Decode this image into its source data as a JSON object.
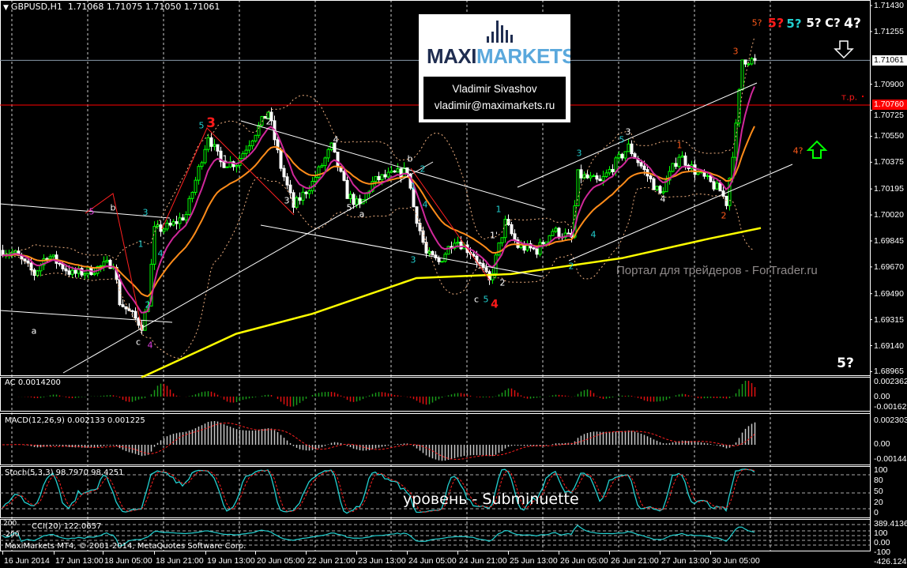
{
  "header": {
    "symbol": "GBPUSD,H1",
    "open": "1.71068",
    "high": "1.71075",
    "low": "1.71050",
    "close": "1.71061"
  },
  "logo": {
    "brand_part1": "MAXI",
    "brand_part2": "MARKETS",
    "author": "Vladimir Sivashov",
    "email": "vladimir@maximarkets.ru"
  },
  "watermark": "Портал для трейдеров - ForTrader.ru",
  "level_label": "уровень - Subminuette",
  "footer": "MaxiMarkets MT4, © 2001-2014, MetaQuotes Software Corp.",
  "colors": {
    "bull": "#00ff00",
    "bear": "#ffffff",
    "ma_fast": "#d0289a",
    "ma_mid": "#ff8c1a",
    "ma_slow": "#ffff00",
    "bands": "#f0b080",
    "bid_line": "#8899aa",
    "target_line": "#ff0000",
    "cyan": "#22d0d0",
    "orange": "#ff5a1a",
    "red": "#ff1a1a",
    "magenta": "#e040e0"
  },
  "chart_data": {
    "type": "candlestick",
    "symbol": "GBPUSD",
    "timeframe": "H1",
    "ylim": [
      1.689,
      1.7148
    ],
    "price_ticks": [
      "1.71430",
      "1.71255",
      "1.70900",
      "1.70725",
      "1.70550",
      "1.70375",
      "1.70195",
      "1.70020",
      "1.69845",
      "1.69670",
      "1.69490",
      "1.69315",
      "1.69140",
      "1.68965"
    ],
    "time_ticks": [
      "16 Jun 2014",
      "17 Jun 13:00",
      "18 Jun 05:00",
      "18 Jun 21:00",
      "19 Jun 13:00",
      "20 Jun 05:00",
      "22 Jun 21:00",
      "23 Jun 13:00",
      "24 Jun 05:00",
      "24 Jun 21:00",
      "25 Jun 13:00",
      "26 Jun 05:00",
      "26 Jun 21:00",
      "27 Jun 13:00",
      "30 Jun 05:00"
    ],
    "current_price": "1.71061",
    "target_price": "1.70760",
    "price_path": [
      [
        "2014-06-16 21:00",
        1.69782
      ],
      [
        "2014-06-17 01:00",
        1.69755
      ],
      [
        "2014-06-17 07:00",
        1.69622
      ],
      [
        "2014-06-17 11:00",
        1.69755
      ],
      [
        "2014-06-17 19:00",
        1.69622
      ],
      [
        "2014-06-18 00:00",
        1.6964
      ],
      [
        "2014-06-18 08:00",
        1.69702
      ],
      [
        "2014-06-18 10:00",
        1.69434
      ],
      [
        "2014-06-18 17:00",
        1.69274
      ],
      [
        "2014-06-18 19:00",
        1.69434
      ],
      [
        "2014-06-18 21:00",
        1.69916
      ],
      [
        "2014-06-19 02:00",
        1.69943
      ],
      [
        "2014-06-19 07:00",
        1.70023
      ],
      [
        "2014-06-19 14:00",
        1.70558
      ],
      [
        "2014-06-19 18:00",
        1.70371
      ],
      [
        "2014-06-19 23:00",
        1.70371
      ],
      [
        "2014-06-20 09:00",
        1.70718
      ],
      [
        "2014-06-20 13:00",
        1.70344
      ],
      [
        "2014-06-20 17:00",
        1.70076
      ],
      [
        "2014-06-22 23:00",
        1.70237
      ],
      [
        "2014-06-23 05:00",
        1.70478
      ],
      [
        "2014-06-23 10:00",
        1.70157
      ],
      [
        "2014-06-23 14:00",
        1.70076
      ],
      [
        "2014-06-23 18:00",
        1.70237
      ],
      [
        "2014-06-23 20:00",
        1.70264
      ],
      [
        "2014-06-24 05:00",
        1.70317
      ],
      [
        "2014-06-24 07:00",
        1.70076
      ],
      [
        "2014-06-24 11:00",
        1.69755
      ],
      [
        "2014-06-24 15:00",
        1.69702
      ],
      [
        "2014-06-24 20:00",
        1.69862
      ],
      [
        "2014-06-25 02:00",
        1.69755
      ],
      [
        "2014-06-25 07:00",
        1.69568
      ],
      [
        "2014-06-25 12:00",
        1.69969
      ],
      [
        "2014-06-25 16:00",
        1.69809
      ],
      [
        "2014-06-25 22:00",
        1.69782
      ],
      [
        "2014-06-26 03:00",
        1.69916
      ],
      [
        "2014-06-26 09:00",
        1.69862
      ],
      [
        "2014-06-26 11:00",
        1.7029
      ],
      [
        "2014-06-26 18:00",
        1.70237
      ],
      [
        "2014-06-27 03:00",
        1.70478
      ],
      [
        "2014-06-27 08:00",
        1.70317
      ],
      [
        "2014-06-27 13:00",
        1.70157
      ],
      [
        "2014-06-27 19:00",
        1.70424
      ],
      [
        "2014-06-30 00:00",
        1.70317
      ],
      [
        "2014-06-30 08:00",
        1.70183
      ],
      [
        "2014-06-30 10:00",
        1.70103
      ],
      [
        "2014-06-30 13:00",
        1.70611
      ],
      [
        "2014-06-30 15:00",
        1.71066
      ],
      [
        "2014-06-30 19:00",
        1.71061
      ]
    ],
    "ma_slow_path": [
      [
        "2014-06-18 17:00",
        1.68926
      ],
      [
        "2014-06-19 23:00",
        1.6922
      ],
      [
        "2014-06-22 23:00",
        1.69354
      ],
      [
        "2014-06-24 08:00",
        1.69595
      ],
      [
        "2014-06-25 14:00",
        1.69622
      ],
      [
        "2014-06-27 01:00",
        1.69729
      ],
      [
        "2014-06-30 05:00",
        1.69862
      ],
      [
        "2014-06-30 21:00",
        1.69932
      ]
    ]
  },
  "wave_labels": [
    {
      "text": "a",
      "color": "white"
    },
    {
      "text": "b",
      "color": "white"
    },
    {
      "text": "5",
      "color": "magenta"
    },
    {
      "text": "3",
      "color": "cyan"
    },
    {
      "text": "1",
      "color": "cyan"
    },
    {
      "text": "4",
      "color": "cyan"
    },
    {
      "text": "2",
      "color": "cyan"
    },
    {
      "text": "c",
      "color": "white"
    },
    {
      "text": "4",
      "color": "magenta"
    },
    {
      "text": "5",
      "color": "cyan"
    },
    {
      "text": "3",
      "color": "red"
    },
    {
      "text": "1",
      "color": "white"
    },
    {
      "text": "2",
      "color": "white"
    },
    {
      "text": "3",
      "color": "white"
    },
    {
      "text": "4",
      "color": "white"
    },
    {
      "text": "5",
      "color": "white"
    },
    {
      "text": "a",
      "color": "white"
    },
    {
      "text": "b",
      "color": "white"
    },
    {
      "text": "2",
      "color": "cyan"
    },
    {
      "text": "1",
      "color": "cyan"
    },
    {
      "text": "4",
      "color": "cyan"
    },
    {
      "text": "3",
      "color": "cyan"
    },
    {
      "text": "1",
      "color": "cyan"
    },
    {
      "text": "1'",
      "color": "white"
    },
    {
      "text": "2",
      "color": "white"
    },
    {
      "text": "c",
      "color": "white"
    },
    {
      "text": "5",
      "color": "cyan"
    },
    {
      "text": "4",
      "color": "red"
    },
    {
      "text": "2",
      "color": "cyan"
    },
    {
      "text": "3",
      "color": "cyan"
    },
    {
      "text": "4",
      "color": "cyan"
    },
    {
      "text": "3",
      "color": "white"
    },
    {
      "text": "5",
      "color": "cyan"
    },
    {
      "text": "4",
      "color": "white"
    },
    {
      "text": "1",
      "color": "orange"
    },
    {
      "text": "2",
      "color": "orange"
    },
    {
      "text": "3",
      "color": "orange"
    },
    {
      "text": "4?",
      "color": "orange"
    },
    {
      "text": "5?",
      "color": "orange"
    },
    {
      "text": "5?",
      "color": "red"
    },
    {
      "text": "5?",
      "color": "cyan"
    },
    {
      "text": "5?",
      "color": "white"
    },
    {
      "text": "C?",
      "color": "white"
    },
    {
      "text": "4?",
      "color": "white"
    },
    {
      "text": "т.р.",
      "color": "red"
    },
    {
      "text": "5?",
      "color": "white"
    }
  ],
  "arrows": [
    {
      "icon": "arrow-down-icon",
      "color": "#ffffff"
    },
    {
      "icon": "arrow-up-icon",
      "color": "#00ff00"
    }
  ],
  "indicators": {
    "ac": {
      "title": "AC 0.0014200",
      "axis": [
        "0.0023627",
        "0.00",
        "-0.0016268"
      ]
    },
    "macd": {
      "title": "MACD(12,26,9) 0.002133 0.001225",
      "axis": [
        "0.002303",
        "0.00",
        "-0.001441"
      ]
    },
    "stoch": {
      "title": "Stoch(5,3,3) 98.7970 98.4251",
      "axis": [
        "100",
        "80",
        "50",
        "20",
        "0"
      ]
    },
    "cci": {
      "title": "CCI(20) 122.0657",
      "axis": [
        "389.4136",
        "100",
        "0.00",
        "-100",
        "-426.1246"
      ],
      "levels": [
        "200",
        "-200"
      ]
    }
  }
}
